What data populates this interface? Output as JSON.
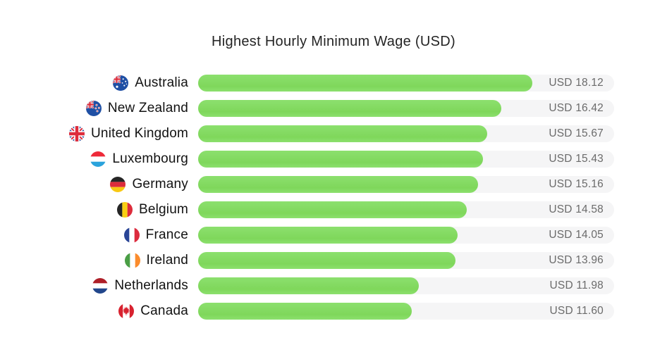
{
  "title": "Highest Hourly Minimum Wage (USD)",
  "colors": {
    "background": "#ffffff",
    "bar_green": "#7fd75b",
    "bar_green_light": "#8ce06e",
    "track_gray": "#f5f5f6",
    "title_text": "#242424",
    "label_text": "#121212",
    "value_text": "#6b6b6b"
  },
  "chart_data": {
    "type": "bar",
    "orientation": "horizontal",
    "title": "Highest Hourly Minimum Wage (USD)",
    "categories": [
      "Australia",
      "New Zealand",
      "United Kingdom",
      "Luxembourg",
      "Germany",
      "Belgium",
      "France",
      "Ireland",
      "Netherlands",
      "Canada"
    ],
    "values": [
      18.12,
      16.42,
      15.67,
      15.43,
      15.16,
      14.58,
      14.05,
      13.96,
      11.98,
      11.6
    ],
    "value_labels": [
      "USD 18.12",
      "USD 16.42",
      "USD 15.67",
      "USD 15.43",
      "USD 15.16",
      "USD 14.58",
      "USD 14.05",
      "USD 13.96",
      "USD 11.98",
      "USD 11.60"
    ],
    "xlabel": "",
    "ylabel": "",
    "xlim": [
      0,
      22.55
    ],
    "grid": false,
    "legend_position": "none",
    "value_label_position": "inside-track-right",
    "sorted": "descending"
  },
  "rows": [
    {
      "country": "Australia",
      "flag_code": "au",
      "flag_icon": "flag-australia-icon",
      "value": 18.12,
      "value_label": "USD 18.12"
    },
    {
      "country": "New Zealand",
      "flag_code": "nz",
      "flag_icon": "flag-new-zealand-icon",
      "value": 16.42,
      "value_label": "USD 16.42"
    },
    {
      "country": "United Kingdom",
      "flag_code": "gb",
      "flag_icon": "flag-united-kingdom-icon",
      "value": 15.67,
      "value_label": "USD 15.67"
    },
    {
      "country": "Luxembourg",
      "flag_code": "lu",
      "flag_icon": "flag-luxembourg-icon",
      "value": 15.43,
      "value_label": "USD 15.43"
    },
    {
      "country": "Germany",
      "flag_code": "de",
      "flag_icon": "flag-germany-icon",
      "value": 15.16,
      "value_label": "USD 15.16"
    },
    {
      "country": "Belgium",
      "flag_code": "be",
      "flag_icon": "flag-belgium-icon",
      "value": 14.58,
      "value_label": "USD 14.58"
    },
    {
      "country": "France",
      "flag_code": "fr",
      "flag_icon": "flag-france-icon",
      "value": 14.05,
      "value_label": "USD 14.05"
    },
    {
      "country": "Ireland",
      "flag_code": "ie",
      "flag_icon": "flag-ireland-icon",
      "value": 13.96,
      "value_label": "USD 13.96"
    },
    {
      "country": "Netherlands",
      "flag_code": "nl",
      "flag_icon": "flag-netherlands-icon",
      "value": 11.98,
      "value_label": "USD 11.98"
    },
    {
      "country": "Canada",
      "flag_code": "ca",
      "flag_icon": "flag-canada-icon",
      "value": 11.6,
      "value_label": "USD 11.60"
    }
  ]
}
